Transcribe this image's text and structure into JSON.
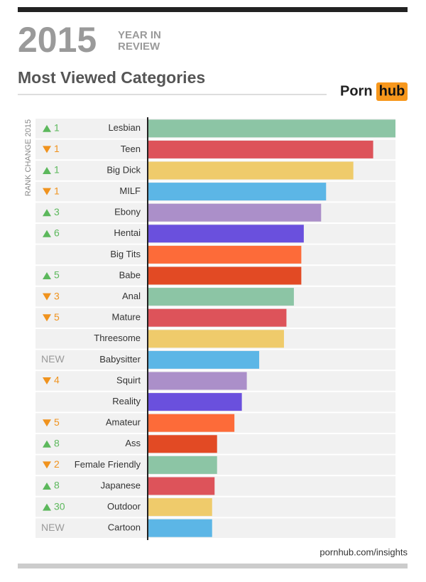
{
  "chart_data": {
    "type": "bar",
    "orientation": "horizontal",
    "header_year": "2015",
    "header_line1": "YEAR IN",
    "header_line2": "REVIEW",
    "title": "Most Viewed Categories",
    "brand_left": "Porn",
    "brand_right": "hub",
    "axis_label": "RANK CHANGE 2015",
    "footer": "pornhub.com/insights",
    "categories": [
      "Lesbian",
      "Teen",
      "Big Dick",
      "MILF",
      "Ebony",
      "Hentai",
      "Big Tits",
      "Babe",
      "Anal",
      "Mature",
      "Threesome",
      "Babysitter",
      "Squirt",
      "Reality",
      "Amateur",
      "Ass",
      "Female Friendly",
      "Japanese",
      "Outdoor",
      "Cartoon"
    ],
    "values": [
      100,
      91,
      83,
      72,
      70,
      63,
      62,
      62,
      59,
      56,
      55,
      45,
      40,
      38,
      35,
      28,
      28,
      27,
      26,
      26
    ],
    "colors": [
      "#8cc5a5",
      "#dd535a",
      "#efcb6b",
      "#5cb6e6",
      "#ab8fc9",
      "#6a50dd",
      "#fd6b39",
      "#e24a24"
    ],
    "rank_change": [
      "1",
      "1",
      "1",
      "1",
      "3",
      "6",
      null,
      "5",
      "3",
      "5",
      null,
      "NEW",
      "4",
      null,
      "5",
      "8",
      "2",
      "8",
      "30",
      "NEW"
    ],
    "rank_direction": [
      "up",
      "down",
      "up",
      "down",
      "up",
      "up",
      null,
      "up",
      "down",
      "down",
      null,
      null,
      "down",
      null,
      "down",
      "up",
      "down",
      "up",
      "up",
      null
    ],
    "xlim": [
      0,
      100
    ]
  }
}
